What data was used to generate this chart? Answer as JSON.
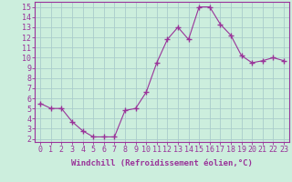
{
  "x": [
    0,
    1,
    2,
    3,
    4,
    5,
    6,
    7,
    8,
    9,
    10,
    11,
    12,
    13,
    14,
    15,
    16,
    17,
    18,
    19,
    20,
    21,
    22,
    23
  ],
  "y": [
    5.5,
    5.0,
    5.0,
    3.7,
    2.8,
    2.2,
    2.2,
    2.2,
    4.8,
    5.0,
    6.6,
    9.5,
    11.8,
    13.0,
    11.8,
    15.0,
    15.0,
    13.3,
    12.2,
    10.2,
    9.5,
    9.7,
    10.0,
    9.7
  ],
  "line_color": "#993399",
  "marker": "+",
  "marker_size": 4,
  "bg_color": "#cceedd",
  "grid_color": "#aacccc",
  "xlabel": "Windchill (Refroidissement éolien,°C)",
  "ytick_values": [
    2,
    3,
    4,
    5,
    6,
    7,
    8,
    9,
    10,
    11,
    12,
    13,
    14,
    15
  ],
  "ylim": [
    1.7,
    15.5
  ],
  "xlim": [
    -0.5,
    23.5
  ],
  "xtick_labels": [
    "0",
    "1",
    "2",
    "3",
    "4",
    "5",
    "6",
    "7",
    "8",
    "9",
    "10",
    "11",
    "12",
    "13",
    "14",
    "15",
    "16",
    "17",
    "18",
    "19",
    "20",
    "21",
    "22",
    "23"
  ],
  "font_color": "#993399",
  "axis_color": "#993399",
  "label_fontsize": 6.5,
  "tick_fontsize": 6
}
